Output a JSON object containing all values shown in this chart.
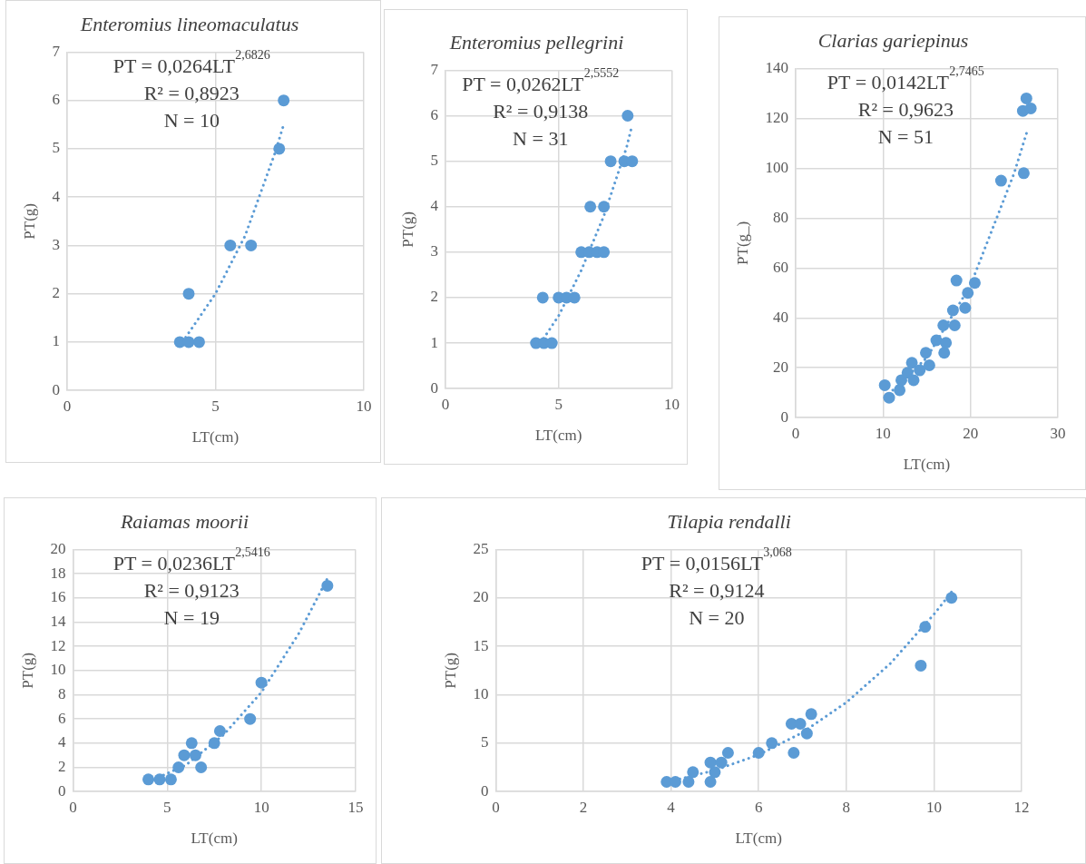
{
  "chart_data": [
    {
      "type": "scatter",
      "title": "Enteromius lineomaculatus",
      "xlabel": "LT(cm)",
      "ylabel": "PT(g)",
      "xlim": [
        0,
        10
      ],
      "ylim": [
        0,
        7
      ],
      "xticks": [
        0,
        5,
        10
      ],
      "yticks": [
        0,
        1,
        2,
        3,
        4,
        5,
        6,
        7
      ],
      "grid": true,
      "legend": false,
      "annotations": [
        "PT = 0,0264LT$^{2,6826}$",
        "R² = 0,8923",
        "N = 10"
      ],
      "series": [
        {
          "type": "scatter",
          "marker": "circle",
          "color": "#5b9bd5",
          "x": [
            3.8,
            4.1,
            4.45,
            4.1,
            5.5,
            6.2,
            7.15,
            7.3
          ],
          "values": [
            1,
            1,
            1,
            2,
            3,
            3,
            5,
            6
          ]
        },
        {
          "type": "line",
          "marker": "none",
          "line_style": "dotted",
          "color": "#5b9bd5",
          "x": [
            3.9,
            4,
            5,
            6,
            7,
            7.3
          ],
          "values": [
            1.0,
            1.1,
            2.0,
            3.2,
            4.9,
            5.5
          ]
        }
      ]
    },
    {
      "type": "scatter",
      "title": "Enteromius pellegrini",
      "xlabel": "LT(cm)",
      "ylabel": "PT(g)",
      "xlim": [
        0,
        10
      ],
      "ylim": [
        0,
        7
      ],
      "xticks": [
        0,
        5,
        10
      ],
      "yticks": [
        0,
        1,
        2,
        3,
        4,
        5,
        6,
        7
      ],
      "grid": true,
      "legend": false,
      "annotations": [
        "PT = 0,0262LT$^{2,5552}$",
        "R² = 0,9138",
        "N = 31"
      ],
      "series": [
        {
          "type": "scatter",
          "marker": "circle",
          "color": "#5b9bd5",
          "x": [
            4.0,
            4.35,
            4.7,
            4.3,
            5.0,
            5.35,
            5.7,
            6.0,
            6.35,
            6.7,
            7.0,
            6.4,
            7.0,
            7.3,
            7.9,
            8.25,
            8.05
          ],
          "values": [
            1,
            1,
            1,
            2,
            2,
            2,
            2,
            3,
            3,
            3,
            3,
            4,
            4,
            5,
            5,
            5,
            6
          ]
        },
        {
          "type": "line",
          "marker": "none",
          "line_style": "dotted",
          "color": "#5b9bd5",
          "x": [
            4.2,
            5,
            6,
            7,
            8,
            8.2
          ],
          "values": [
            1.0,
            1.6,
            2.6,
            3.8,
            5.3,
            5.7
          ]
        }
      ]
    },
    {
      "type": "scatter",
      "title": "Clarias gariepinus",
      "xlabel": "LT(cm)",
      "ylabel": "PT(g_)",
      "xlim": [
        0,
        30
      ],
      "ylim": [
        0,
        140
      ],
      "xticks": [
        0,
        10,
        20,
        30
      ],
      "yticks": [
        0,
        20,
        40,
        60,
        80,
        100,
        120,
        140
      ],
      "grid": true,
      "legend": false,
      "annotations": [
        "PT = 0,0142LT$^{2,7465}$",
        "R² = 0,9623",
        "N = 51"
      ],
      "series": [
        {
          "type": "scatter",
          "marker": "circle",
          "color": "#5b9bd5",
          "x": [
            10.2,
            10.7,
            11.9,
            12.1,
            12.8,
            13.3,
            13.5,
            14.2,
            14.9,
            15.3,
            16.1,
            17.0,
            17.2,
            16.9,
            18.2,
            18.0,
            19.4,
            19.7,
            18.4,
            20.5,
            23.5,
            26.1,
            26.4,
            26.0,
            26.9
          ],
          "values": [
            13,
            8,
            11,
            15,
            18,
            22,
            15,
            19,
            26,
            21,
            31,
            26,
            30,
            37,
            37,
            43,
            44,
            50,
            55,
            54,
            95,
            98,
            128,
            123,
            124
          ]
        },
        {
          "type": "line",
          "marker": "none",
          "line_style": "dotted",
          "color": "#5b9bd5",
          "x": [
            10.2,
            15,
            20,
            25,
            26.5
          ],
          "values": [
            8,
            24,
            53,
            98,
            115
          ]
        }
      ]
    },
    {
      "type": "scatter",
      "title": "Raiamas moorii",
      "xlabel": "LT(cm)",
      "ylabel": "PT(g)",
      "xlim": [
        0,
        15
      ],
      "ylim": [
        0,
        20
      ],
      "xticks": [
        0,
        5,
        10,
        15
      ],
      "yticks": [
        0,
        2,
        4,
        6,
        8,
        10,
        12,
        14,
        16,
        18,
        20
      ],
      "grid": true,
      "legend": false,
      "annotations": [
        "PT = 0,0236LT$^{2,5416}$",
        "R² = 0,9123",
        "N = 19"
      ],
      "series": [
        {
          "type": "scatter",
          "marker": "circle",
          "color": "#5b9bd5",
          "x": [
            4.0,
            4.6,
            5.2,
            5.6,
            6.8,
            5.9,
            6.5,
            6.3,
            7.5,
            7.8,
            9.4,
            10.0,
            13.5
          ],
          "values": [
            1,
            1,
            1,
            2,
            2,
            3,
            3,
            4,
            4,
            5,
            6,
            9,
            17
          ]
        },
        {
          "type": "line",
          "marker": "none",
          "line_style": "dotted",
          "color": "#5b9bd5",
          "x": [
            4,
            6,
            8,
            10,
            12,
            13.5
          ],
          "values": [
            0.8,
            2.2,
            4.7,
            8.2,
            13.1,
            17.6
          ]
        }
      ]
    },
    {
      "type": "scatter",
      "title": "Tilapia rendalli",
      "xlabel": "LT(cm)",
      "ylabel": "PT(g)",
      "xlim": [
        0,
        12
      ],
      "ylim": [
        0,
        25
      ],
      "xticks": [
        0,
        2,
        4,
        6,
        8,
        10,
        12
      ],
      "yticks": [
        0,
        5,
        10,
        15,
        20,
        25
      ],
      "grid": true,
      "legend": false,
      "annotations": [
        "PT = 0,0156LT$^{3,068}$",
        "R² = 0,9124",
        "N = 20"
      ],
      "series": [
        {
          "type": "scatter",
          "marker": "circle",
          "color": "#5b9bd5",
          "x": [
            3.9,
            4.1,
            4.4,
            4.9,
            4.5,
            5.0,
            4.9,
            5.15,
            5.3,
            6.0,
            6.3,
            6.8,
            7.1,
            6.75,
            6.95,
            7.2,
            9.7,
            9.8,
            10.4
          ],
          "values": [
            1,
            1,
            1,
            1,
            2,
            2,
            3,
            3,
            4,
            4,
            5,
            4,
            6,
            7,
            7,
            8,
            13,
            17,
            20
          ]
        },
        {
          "type": "line",
          "marker": "none",
          "line_style": "dotted",
          "color": "#5b9bd5",
          "x": [
            4.2,
            5,
            6,
            7,
            8,
            9,
            10,
            10.4
          ],
          "values": [
            1.3,
            2.2,
            3.8,
            6.1,
            9.2,
            13.2,
            18.3,
            20.6
          ]
        }
      ]
    }
  ]
}
